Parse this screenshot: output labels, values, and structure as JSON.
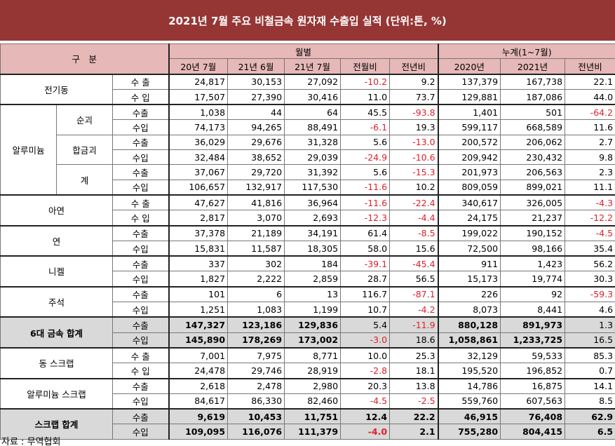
{
  "title": "2021년 7월 주요 비철금속 원자재 수출입 실적 (단위:톤, %)",
  "header": {
    "category": "구　분",
    "monthly": "월별",
    "cumulative": "누계(1~7월)",
    "columns": [
      "20년 7월",
      "21년 6월",
      "21년 7월",
      "전월비",
      "전년비",
      "2020년",
      "2021년",
      "전년비"
    ]
  },
  "groups": [
    {
      "label": "전기동",
      "rows": [
        {
          "type": "수 출",
          "values": [
            "24,817",
            "30,153",
            "27,092",
            "-10.2",
            "9.2",
            "137,379",
            "167,738",
            "22.1"
          ]
        },
        {
          "type": "수 입",
          "values": [
            "17,507",
            "27,390",
            "30,416",
            "11.0",
            "73.7",
            "129,881",
            "187,086",
            "44.0"
          ]
        }
      ]
    },
    {
      "label": "알루미늄",
      "sub": [
        {
          "label": "순괴",
          "rows": [
            {
              "type": "수출",
              "values": [
                "1,038",
                "44",
                "64",
                "45.5",
                "-93.8",
                "1,401",
                "501",
                "-64.2"
              ]
            },
            {
              "type": "수입",
              "values": [
                "74,173",
                "94,265",
                "88,491",
                "-6.1",
                "19.3",
                "599,117",
                "668,589",
                "11.6"
              ]
            }
          ]
        },
        {
          "label": "합금괴",
          "rows": [
            {
              "type": "수출",
              "values": [
                "36,029",
                "29,676",
                "31,328",
                "5.6",
                "-13.0",
                "200,572",
                "206,062",
                "2.7"
              ]
            },
            {
              "type": "수입",
              "values": [
                "32,484",
                "38,652",
                "29,039",
                "-24.9",
                "-10.6",
                "209,942",
                "230,432",
                "9.8"
              ]
            }
          ]
        },
        {
          "label": "계",
          "rows": [
            {
              "type": "수출",
              "values": [
                "37,067",
                "29,720",
                "31,392",
                "5.6",
                "-15.3",
                "201,973",
                "206,563",
                "2.3"
              ]
            },
            {
              "type": "수입",
              "values": [
                "106,657",
                "132,917",
                "117,530",
                "-11.6",
                "10.2",
                "809,059",
                "899,021",
                "11.1"
              ]
            }
          ]
        }
      ]
    },
    {
      "label": "아연",
      "rows": [
        {
          "type": "수 출",
          "values": [
            "47,627",
            "41,816",
            "36,964",
            "-11.6",
            "-22.4",
            "340,617",
            "326,005",
            "-4.3"
          ]
        },
        {
          "type": "수 입",
          "values": [
            "2,817",
            "3,070",
            "2,693",
            "-12.3",
            "-4.4",
            "24,175",
            "21,237",
            "-12.2"
          ]
        }
      ]
    },
    {
      "label": "연",
      "rows": [
        {
          "type": "수출",
          "values": [
            "37,378",
            "21,189",
            "34,191",
            "61.4",
            "-8.5",
            "199,022",
            "190,152",
            "-4.5"
          ]
        },
        {
          "type": "수입",
          "values": [
            "15,831",
            "11,587",
            "18,305",
            "58.0",
            "15.6",
            "72,500",
            "98,166",
            "35.4"
          ]
        }
      ]
    },
    {
      "label": "니켈",
      "rows": [
        {
          "type": "수출",
          "values": [
            "337",
            "302",
            "184",
            "-39.1",
            "-45.4",
            "911",
            "1,423",
            "56.2"
          ]
        },
        {
          "type": "수입",
          "values": [
            "1,827",
            "2,222",
            "2,859",
            "28.7",
            "56.5",
            "15,173",
            "19,774",
            "30.3"
          ]
        }
      ]
    },
    {
      "label": "주석",
      "rows": [
        {
          "type": "수출",
          "values": [
            "101",
            "6",
            "13",
            "116.7",
            "-87.1",
            "226",
            "92",
            "-59.3"
          ]
        },
        {
          "type": "수입",
          "values": [
            "1,251",
            "1,083",
            "1,199",
            "10.7",
            "-4.2",
            "8,073",
            "8,441",
            "4.6"
          ]
        }
      ]
    },
    {
      "label": "6대 금속 합계",
      "total": "partial",
      "rows": [
        {
          "type": "수출",
          "values": [
            "147,327",
            "123,186",
            "129,836",
            "5.4",
            "-11.9",
            "880,128",
            "891,973",
            "1.3"
          ]
        },
        {
          "type": "수입",
          "values": [
            "145,890",
            "178,269",
            "173,002",
            "-3.0",
            "18.6",
            "1,058,861",
            "1,233,725",
            "16.5"
          ]
        }
      ]
    },
    {
      "label": "동 스크랩",
      "rows": [
        {
          "type": "수 출",
          "values": [
            "7,001",
            "7,975",
            "8,771",
            "10.0",
            "25.3",
            "32,129",
            "59,533",
            "85.3"
          ]
        },
        {
          "type": "수 입",
          "values": [
            "24,478",
            "29,746",
            "28,919",
            "-2.8",
            "18.1",
            "195,520",
            "196,852",
            "0.7"
          ]
        }
      ]
    },
    {
      "label": "알루미늄 스크랩",
      "rows": [
        {
          "type": "수출",
          "values": [
            "2,618",
            "2,478",
            "2,980",
            "20.3",
            "13.8",
            "14,786",
            "16,875",
            "14.1"
          ]
        },
        {
          "type": "수입",
          "values": [
            "84,617",
            "86,330",
            "82,460",
            "-4.5",
            "-2.5",
            "559,760",
            "607,563",
            "8.5"
          ]
        }
      ]
    },
    {
      "label": "스크랩 합계",
      "total": "full",
      "rows": [
        {
          "type": "수출",
          "values": [
            "9,619",
            "10,453",
            "11,751",
            "12.4",
            "22.2",
            "46,915",
            "76,408",
            "62.9"
          ]
        },
        {
          "type": "수입",
          "values": [
            "109,095",
            "116,076",
            "111,379",
            "-4.0",
            "2.1",
            "755,280",
            "804,415",
            "6.5"
          ]
        }
      ]
    }
  ],
  "source": "자료 : 무역협회",
  "colors": {
    "title_bg": "#963634",
    "header_bg": "#e6b8b7",
    "total_bg": "#d9d9d9",
    "negative": "#e0202a"
  }
}
